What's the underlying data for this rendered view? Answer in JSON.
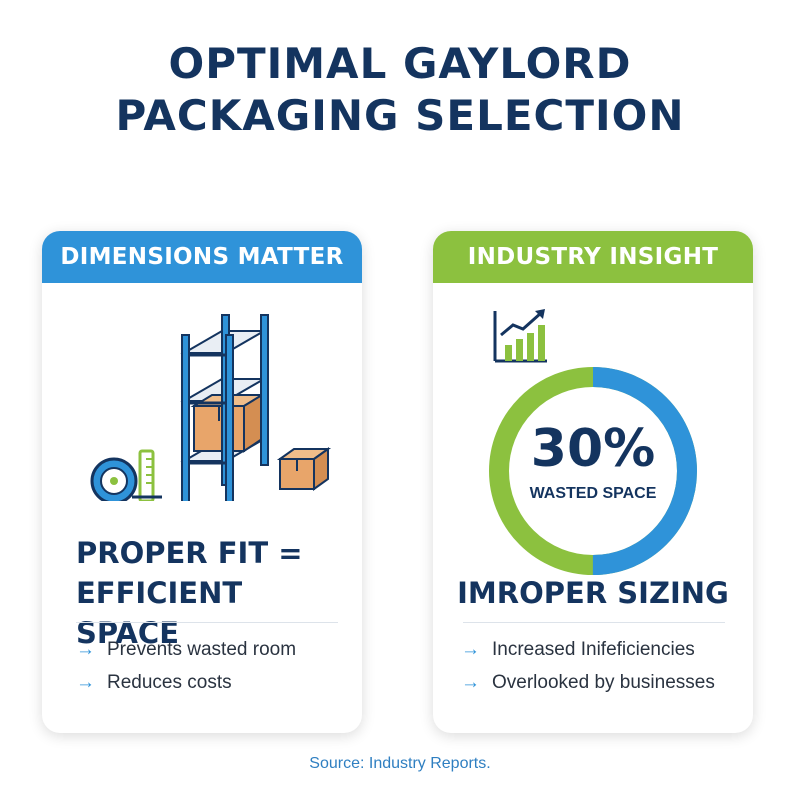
{
  "title": {
    "line1": "OPTIMAL GAYLORD",
    "line2": "PACKAGING SELECTION"
  },
  "left_card": {
    "header": "DIMENSIONS MATTER",
    "heading_line1": "PROPER FIT =",
    "heading_line2": "EFFICIENT SPACE",
    "bullets": [
      "Prevents wasted room",
      "Reduces costs"
    ],
    "icons": [
      "tape-measure-icon",
      "pallet-rack-icon",
      "cardboard-box-icon"
    ]
  },
  "right_card": {
    "header": "INDUSTRY INSIGHT",
    "stat_value": "30%",
    "stat_label": "WASTED SPACE",
    "stat_fraction": 0.3,
    "heading": "IMROPER SIZING",
    "bullets": [
      "Increased Inifeficiencies",
      "Overlooked by businesses"
    ],
    "icons": [
      "bar-chart-growth-icon"
    ]
  },
  "colors": {
    "navy": "#14345f",
    "blue": "#2f93d9",
    "green": "#8cc13f",
    "box": "#e8a56a"
  },
  "source": "Source: Industry Reports."
}
